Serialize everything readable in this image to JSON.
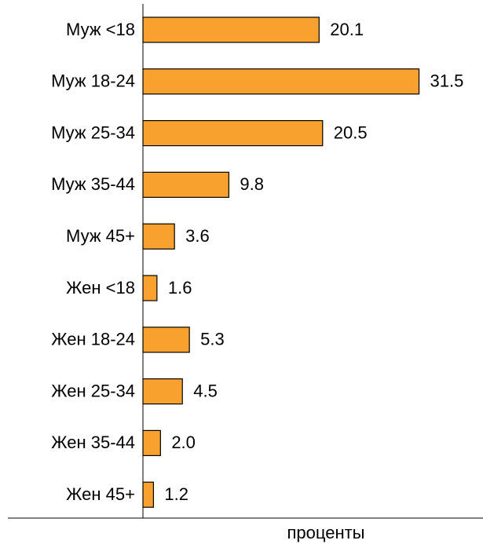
{
  "chart_data": {
    "type": "barh",
    "categories": [
      "Муж <18",
      "Муж 18-24",
      "Муж 25-34",
      "Муж 35-44",
      "Муж 45+",
      "Жен <18",
      "Жен 18-24",
      "Жен 25-34",
      "Жен 35-44",
      "Жен 45+"
    ],
    "values": [
      20.1,
      31.5,
      20.5,
      9.8,
      3.6,
      1.6,
      5.3,
      4.5,
      2.0,
      1.2
    ],
    "value_labels": [
      "20.1",
      "31.5",
      "20.5",
      "9.8",
      "3.6",
      "1.6",
      "5.3",
      "4.5",
      "2.0",
      "1.2"
    ],
    "color": "#f9a12e",
    "xlim": [
      0,
      38.8
    ],
    "x_label": "проценты"
  }
}
